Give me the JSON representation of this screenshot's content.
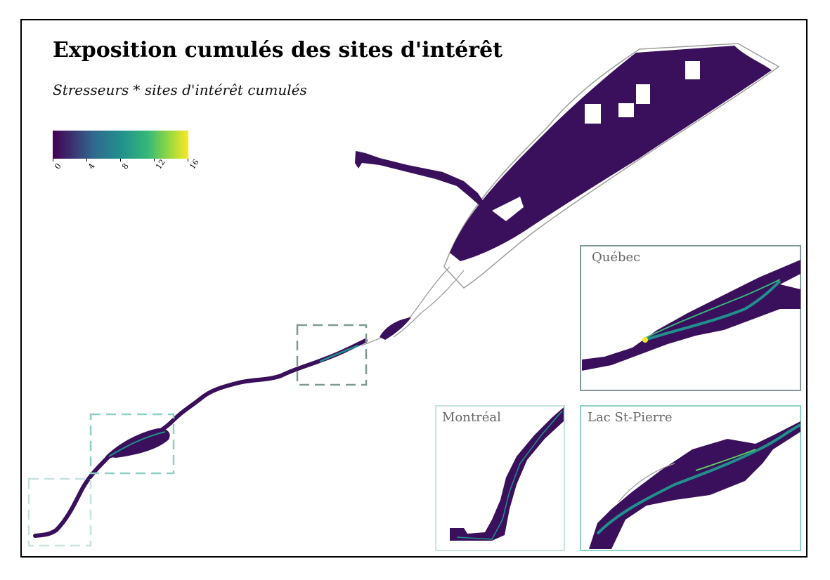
{
  "map": {
    "title": "Exposition cumulés des sites d'intérêt",
    "subtitle": "Stresseurs * sites d'intérêt cumulés",
    "legend": {
      "ticks": [
        "0",
        "4",
        "8",
        "12",
        "16"
      ],
      "colors": [
        "#440154",
        "#31688e",
        "#21908d",
        "#35b779",
        "#90d743",
        "#fde725"
      ]
    },
    "insets": {
      "quebec": {
        "label": "Québec",
        "border_color": "#7f9a96"
      },
      "montreal": {
        "label": "Montréal",
        "border_color": "#c6e3e0"
      },
      "lac_st_pierre": {
        "label": "Lac St-Pierre",
        "border_color": "#8fd0c6"
      }
    },
    "colors": {
      "river_fill": "#3a0f5c",
      "highlight": "#21908d",
      "hot": "#fde725",
      "shoreline": "#9e9e9e"
    }
  }
}
